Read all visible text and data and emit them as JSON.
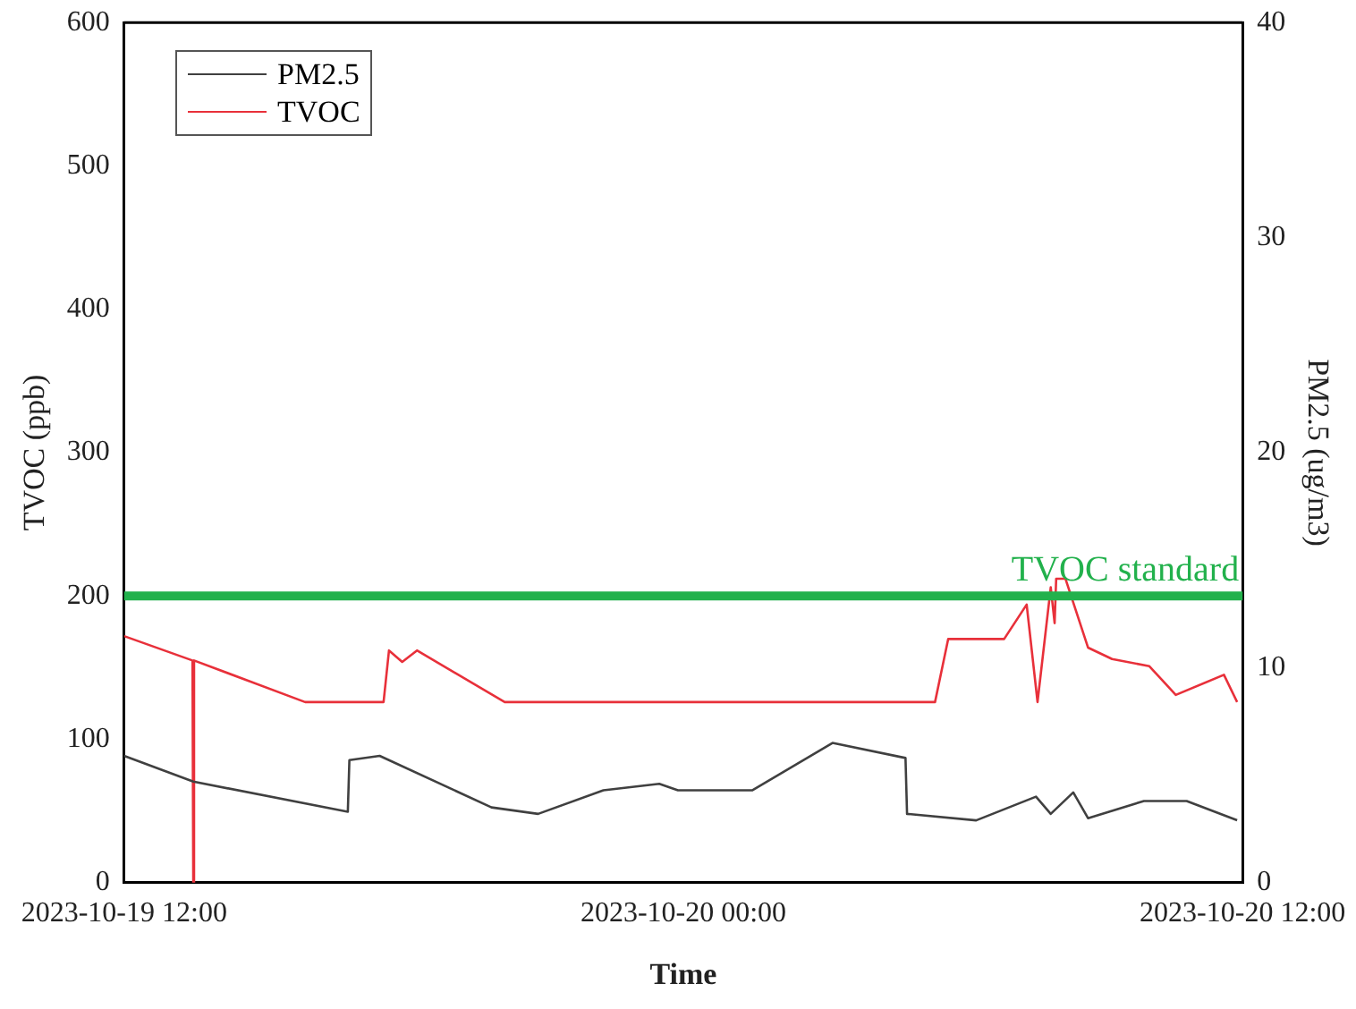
{
  "chart_data": {
    "type": "line",
    "xlabel": "Time",
    "ylabel": "TVOC (ppb)",
    "y2label": "PM2.5 (ug/m3)",
    "xlim": [
      "2023-10-19T12:00",
      "2023-10-20T12:00"
    ],
    "xticks": [
      {
        "value": "2023-10-19T12:00",
        "label": "2023-10-19 12:00"
      },
      {
        "value": "2023-10-20T00:00",
        "label": "2023-10-20 00:00"
      },
      {
        "value": "2023-10-20T12:00",
        "label": "2023-10-20 12:00"
      }
    ],
    "ylim": [
      0,
      600
    ],
    "yticks": [
      0,
      100,
      200,
      300,
      400,
      500,
      600
    ],
    "y2lim": [
      0,
      40
    ],
    "y2ticks": [
      0,
      10,
      20,
      30,
      40
    ],
    "grid": false,
    "legend": "top left",
    "marker": "none",
    "line_style": "solid",
    "ref_lines": [
      {
        "axis": "y",
        "value": 200,
        "label": "TVOC standard",
        "color": "#22b14c"
      }
    ],
    "series": [
      {
        "name": "PM2.5",
        "color": "#404040",
        "axis": "y2",
        "x": [
          "2023-10-19T12:00",
          "2023-10-19T13:29",
          "2023-10-19T16:48",
          "2023-10-19T16:50",
          "2023-10-19T17:29",
          "2023-10-19T19:53",
          "2023-10-19T20:53",
          "2023-10-19T22:17",
          "2023-10-19T23:29",
          "2023-10-19T23:53",
          "2023-10-20T01:29",
          "2023-10-20T03:12",
          "2023-10-20T04:46",
          "2023-10-20T04:48",
          "2023-10-20T06:17",
          "2023-10-20T07:34",
          "2023-10-20T07:53",
          "2023-10-20T08:22",
          "2023-10-20T08:41",
          "2023-10-20T09:53",
          "2023-10-20T10:48",
          "2023-10-20T11:53"
        ],
        "values": [
          5.9,
          4.7,
          3.3,
          5.7,
          5.9,
          3.5,
          3.2,
          4.3,
          4.6,
          4.3,
          4.3,
          6.5,
          5.8,
          3.2,
          2.9,
          4.0,
          3.2,
          4.2,
          3.0,
          3.8,
          3.8,
          2.9
        ]
      },
      {
        "name": "TVOC",
        "color": "#e8303a",
        "x": [
          "2023-10-19T12:00",
          "2023-10-19T13:28",
          "2023-10-19T13:29",
          "2023-10-19T13:30",
          "2023-10-19T15:53",
          "2023-10-19T17:34",
          "2023-10-19T17:41",
          "2023-10-19T17:58",
          "2023-10-19T18:17",
          "2023-10-19T20:10",
          "2023-10-20T05:24",
          "2023-10-20T05:41",
          "2023-10-20T06:53",
          "2023-10-20T07:22",
          "2023-10-20T07:36",
          "2023-10-20T07:53",
          "2023-10-20T07:58",
          "2023-10-20T08:00",
          "2023-10-20T08:12",
          "2023-10-20T08:41",
          "2023-10-20T09:12",
          "2023-10-20T10:00",
          "2023-10-20T10:34",
          "2023-10-20T11:36",
          "2023-10-20T11:53"
        ],
        "values": [
          172,
          155,
          0,
          155,
          126,
          126,
          162,
          154,
          162,
          126,
          126,
          170,
          170,
          194,
          126,
          206,
          181,
          212,
          212,
          164,
          156,
          151,
          131,
          145,
          126
        ]
      }
    ]
  }
}
